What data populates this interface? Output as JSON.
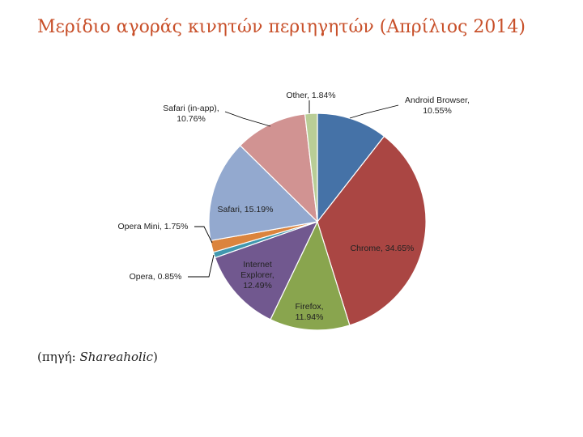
{
  "slide": {
    "title": "Μερίδιο αγοράς κινητών περιηγητών (Απρίλιος 2014)",
    "source_prefix": "(πηγή: ",
    "source_name": "Shareaholic",
    "source_suffix": ")"
  },
  "colors": {
    "title": "#c8502a"
  },
  "chart_data": {
    "type": "pie",
    "title": "",
    "slices": [
      {
        "name": "Android Browser",
        "value": 10.55,
        "label": "Android Browser, 10.55%",
        "color": "#4572a7"
      },
      {
        "name": "Chrome",
        "value": 34.65,
        "label": "Chrome, 34.65%",
        "color": "#aa4643"
      },
      {
        "name": "Firefox",
        "value": 11.94,
        "label": "Firefox, 11.94%",
        "color": "#89a54e"
      },
      {
        "name": "Internet Explorer",
        "value": 12.49,
        "label": "Internet Explorer, 12.49%",
        "color": "#71588f"
      },
      {
        "name": "Opera",
        "value": 0.85,
        "label": "Opera, 0.85%",
        "color": "#4198af"
      },
      {
        "name": "Opera Mini",
        "value": 1.75,
        "label": "Opera Mini, 1.75%",
        "color": "#db843d"
      },
      {
        "name": "Safari",
        "value": 15.19,
        "label": "Safari, 15.19%",
        "color": "#93a9cf"
      },
      {
        "name": "Safari (in-app)",
        "value": 10.76,
        "label": "Safari (in-app), 10.76%",
        "color": "#d19392"
      },
      {
        "name": "Other",
        "value": 1.84,
        "label": "Other, 1.84%",
        "color": "#b9cd96"
      }
    ],
    "legend": "none"
  }
}
